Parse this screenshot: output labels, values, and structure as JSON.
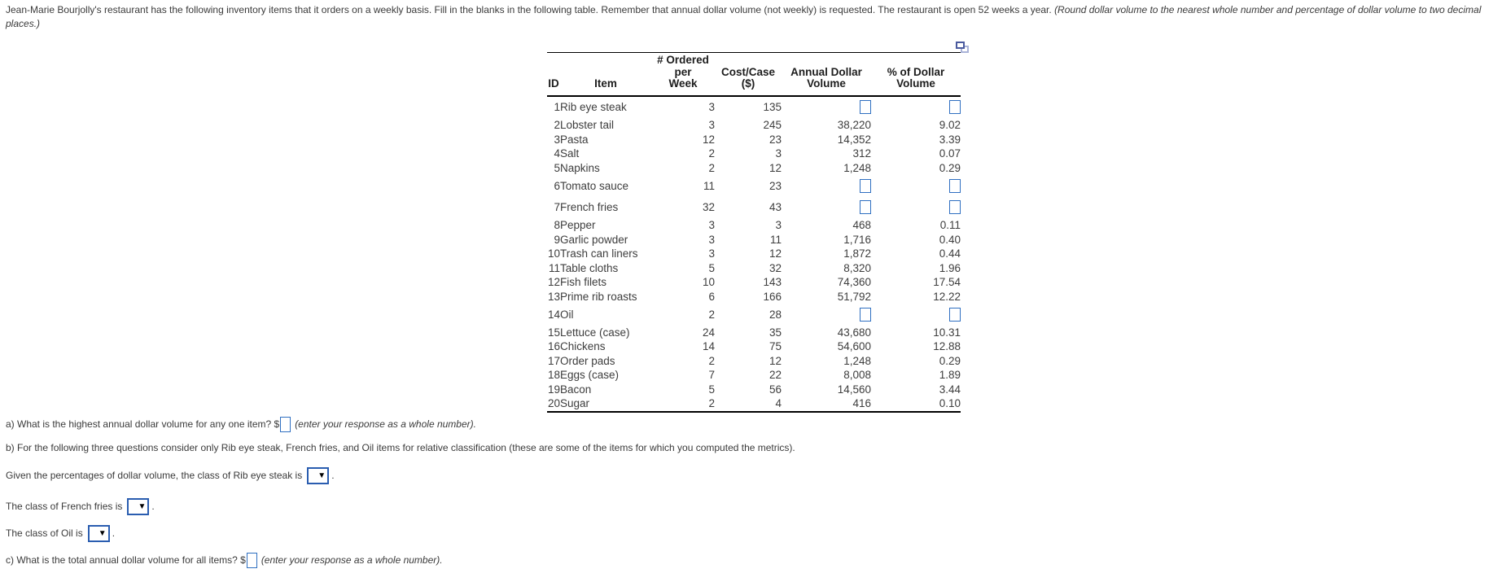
{
  "colors": {
    "body_text": "#3a3a3a",
    "table_text": "#3d3d3d",
    "answer_box_border": "#2f6fc1",
    "dropdown_border": "#2a5db0",
    "icon_front": "#4a5a9e",
    "icon_back": "#aab3d8"
  },
  "problem": {
    "statement": "Jean-Marie Bourjolly's restaurant has the following inventory items that it orders on a weekly basis. Fill in the blanks in the following table. Remember that annual dollar volume (not weekly) is requested. The restaurant is open 52 weeks a year. ",
    "statement_italic": "(Round dollar volume to the nearest whole number and percentage of dollar volume to two decimal places.)"
  },
  "table": {
    "headers": {
      "id": "ID",
      "item": "Item",
      "week1": "# Ordered per",
      "week2": "Week",
      "cost1": "Cost/Case",
      "cost2": "($)",
      "annual1": "Annual Dollar",
      "annual2": "Volume",
      "pct1": "% of Dollar",
      "pct2": "Volume"
    },
    "rows": [
      {
        "id": "1",
        "item": "Rib eye steak",
        "week": "3",
        "cost": "135",
        "annual": null,
        "pct": null,
        "blank": true
      },
      {
        "id": "2",
        "item": "Lobster tail",
        "week": "3",
        "cost": "245",
        "annual": "38,220",
        "pct": "9.02"
      },
      {
        "id": "3",
        "item": "Pasta",
        "week": "12",
        "cost": "23",
        "annual": "14,352",
        "pct": "3.39"
      },
      {
        "id": "4",
        "item": "Salt",
        "week": "2",
        "cost": "3",
        "annual": "312",
        "pct": "0.07"
      },
      {
        "id": "5",
        "item": "Napkins",
        "week": "2",
        "cost": "12",
        "annual": "1,248",
        "pct": "0.29"
      },
      {
        "id": "6",
        "item": "Tomato sauce",
        "week": "11",
        "cost": "23",
        "annual": null,
        "pct": null,
        "blank": true
      },
      {
        "id": "7",
        "item": "French fries",
        "week": "32",
        "cost": "43",
        "annual": null,
        "pct": null,
        "blank": true
      },
      {
        "id": "8",
        "item": "Pepper",
        "week": "3",
        "cost": "3",
        "annual": "468",
        "pct": "0.11"
      },
      {
        "id": "9",
        "item": "Garlic powder",
        "week": "3",
        "cost": "11",
        "annual": "1,716",
        "pct": "0.40"
      },
      {
        "id": "10",
        "item": "Trash can liners",
        "week": "3",
        "cost": "12",
        "annual": "1,872",
        "pct": "0.44"
      },
      {
        "id": "11",
        "item": "Table cloths",
        "week": "5",
        "cost": "32",
        "annual": "8,320",
        "pct": "1.96"
      },
      {
        "id": "12",
        "item": "Fish filets",
        "week": "10",
        "cost": "143",
        "annual": "74,360",
        "pct": "17.54"
      },
      {
        "id": "13",
        "item": "Prime rib roasts",
        "week": "6",
        "cost": "166",
        "annual": "51,792",
        "pct": "12.22"
      },
      {
        "id": "14",
        "item": "Oil",
        "week": "2",
        "cost": "28",
        "annual": null,
        "pct": null,
        "blank": true
      },
      {
        "id": "15",
        "item": "Lettuce (case)",
        "week": "24",
        "cost": "35",
        "annual": "43,680",
        "pct": "10.31"
      },
      {
        "id": "16",
        "item": "Chickens",
        "week": "14",
        "cost": "75",
        "annual": "54,600",
        "pct": "12.88"
      },
      {
        "id": "17",
        "item": "Order pads",
        "week": "2",
        "cost": "12",
        "annual": "1,248",
        "pct": "0.29"
      },
      {
        "id": "18",
        "item": "Eggs (case)",
        "week": "7",
        "cost": "22",
        "annual": "8,008",
        "pct": "1.89"
      },
      {
        "id": "19",
        "item": "Bacon",
        "week": "5",
        "cost": "56",
        "annual": "14,560",
        "pct": "3.44"
      },
      {
        "id": "20",
        "item": "Sugar",
        "week": "2",
        "cost": "4",
        "annual": "416",
        "pct": "0.10"
      }
    ]
  },
  "questions": {
    "a": {
      "text": "a) What is the highest annual dollar volume for any one item? $",
      "hint": "(enter your response as a whole number)."
    },
    "b": {
      "text": "b) For the following three questions consider only Rib eye steak, French fries, and Oil items for relative classification (these are some of the items for which you computed the metrics)."
    },
    "rib_eye": {
      "text": "Given the percentages of dollar volume, the class of Rib eye steak is",
      "suffix": "."
    },
    "french_fries": {
      "text": "The class of French fries is",
      "suffix": "."
    },
    "oil": {
      "text": "The class of Oil is",
      "suffix": "."
    },
    "c": {
      "text": "c) What is the total annual dollar volume for all items? $",
      "hint": "(enter your response as a whole number)."
    }
  }
}
